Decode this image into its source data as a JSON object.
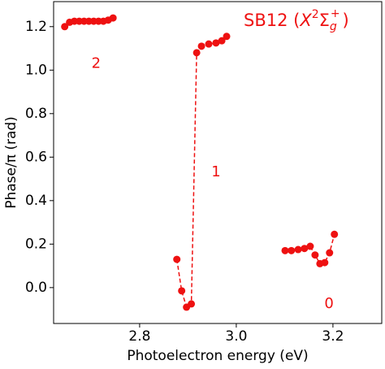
{
  "chart_data": {
    "type": "line",
    "xlabel": "Photoelectron energy (eV)",
    "ylabel": "Phase/π (rad)",
    "x": [
      2.645,
      2.655,
      2.665,
      2.675,
      2.685,
      2.695,
      2.705,
      2.715,
      2.725,
      2.735,
      2.745,
      null,
      2.877,
      2.887,
      2.897,
      2.907,
      2.918,
      2.928,
      2.943,
      2.958,
      2.97,
      2.98,
      null,
      3.101,
      3.114,
      3.128,
      3.141,
      3.153,
      3.163,
      3.173,
      3.183,
      3.193,
      3.203
    ],
    "series": [
      {
        "label_parts": [
          "SB12 (",
          "X",
          "2",
          "Σ",
          "g",
          "+",
          ")"
        ],
        "color": "#ee1111",
        "values": [
          1.2,
          1.22,
          1.225,
          1.225,
          1.225,
          1.225,
          1.225,
          1.225,
          1.225,
          1.23,
          1.24,
          null,
          0.13,
          -0.015,
          -0.09,
          -0.075,
          1.08,
          1.11,
          1.12,
          1.125,
          1.135,
          1.155,
          null,
          0.17,
          0.17,
          0.175,
          0.18,
          0.19,
          0.15,
          0.11,
          0.115,
          0.16,
          0.245
        ]
      }
    ],
    "annotations": [
      {
        "text": "2",
        "x": 2.71,
        "y": 1.03
      },
      {
        "text": "1",
        "x": 2.958,
        "y": 0.53
      },
      {
        "text": "0",
        "x": 3.192,
        "y": -0.075
      }
    ],
    "xlim": [
      2.622,
      3.301
    ],
    "ylim": [
      -0.165,
      1.315
    ],
    "xticks": [
      2.8,
      {
        "value": 3.0,
        "label": "3.0"
      },
      3.2
    ],
    "yticks": [
      {
        "value": 0,
        "label": "0.0"
      },
      0.2,
      0.4,
      0.6,
      0.8,
      {
        "value": 1,
        "label": "1.0"
      },
      1.2
    ],
    "line_style": "dashed"
  }
}
